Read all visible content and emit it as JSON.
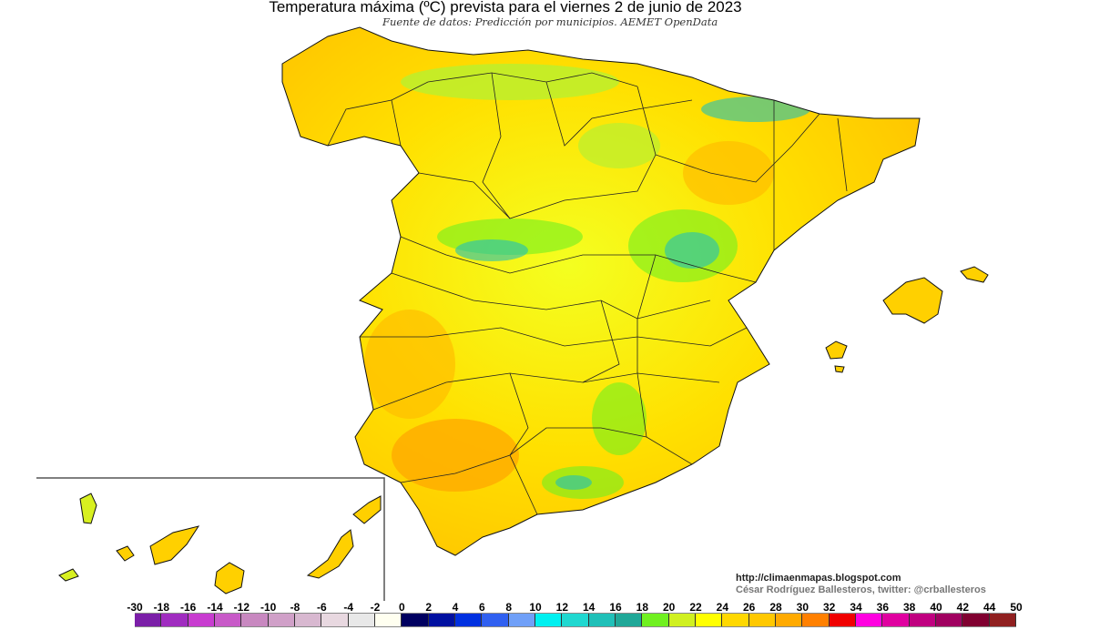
{
  "title": "Temperatura máxima (ºC) prevista para el viernes 2 de junio de 2023",
  "subtitle": "Fuente de datos: Predicción por municipios. AEMET OpenData",
  "credits": {
    "url": "http://climaenmapas.blogspot.com",
    "author": "César Rodríguez Ballesteros, twitter: @crballesteros"
  },
  "legend": {
    "labels": [
      "-30",
      "-18",
      "-16",
      "-14",
      "-12",
      "-10",
      "-8",
      "-6",
      "-4",
      "-2",
      "0",
      "2",
      "4",
      "6",
      "8",
      "10",
      "12",
      "14",
      "16",
      "18",
      "20",
      "22",
      "24",
      "26",
      "28",
      "30",
      "32",
      "34",
      "36",
      "38",
      "40",
      "42",
      "44",
      "50"
    ],
    "colors": [
      "#7b1fa8",
      "#a02cc0",
      "#c83cd0",
      "#c85ac8",
      "#c888c0",
      "#d0a0c8",
      "#d8b8d0",
      "#e8d8e0",
      "#e8e8e8",
      "#fffff0",
      "#000060",
      "#0010a0",
      "#0030e0",
      "#3060f0",
      "#70a0f8",
      "#00f0f0",
      "#20d8d0",
      "#20c0b8",
      "#20a898",
      "#70f020",
      "#d0f020",
      "#ffff00",
      "#ffd800",
      "#ffc800",
      "#ffaa00",
      "#ff8000",
      "#f00000",
      "#ff00e0",
      "#e000a0",
      "#c00080",
      "#a00060",
      "#800030",
      "#902020"
    ]
  },
  "map": {
    "region": "Spain",
    "dominant_colors": [
      "#ffd800",
      "#ffc800",
      "#ffaa00",
      "#ffff00",
      "#d0f020",
      "#70f020",
      "#20c0b8"
    ]
  }
}
